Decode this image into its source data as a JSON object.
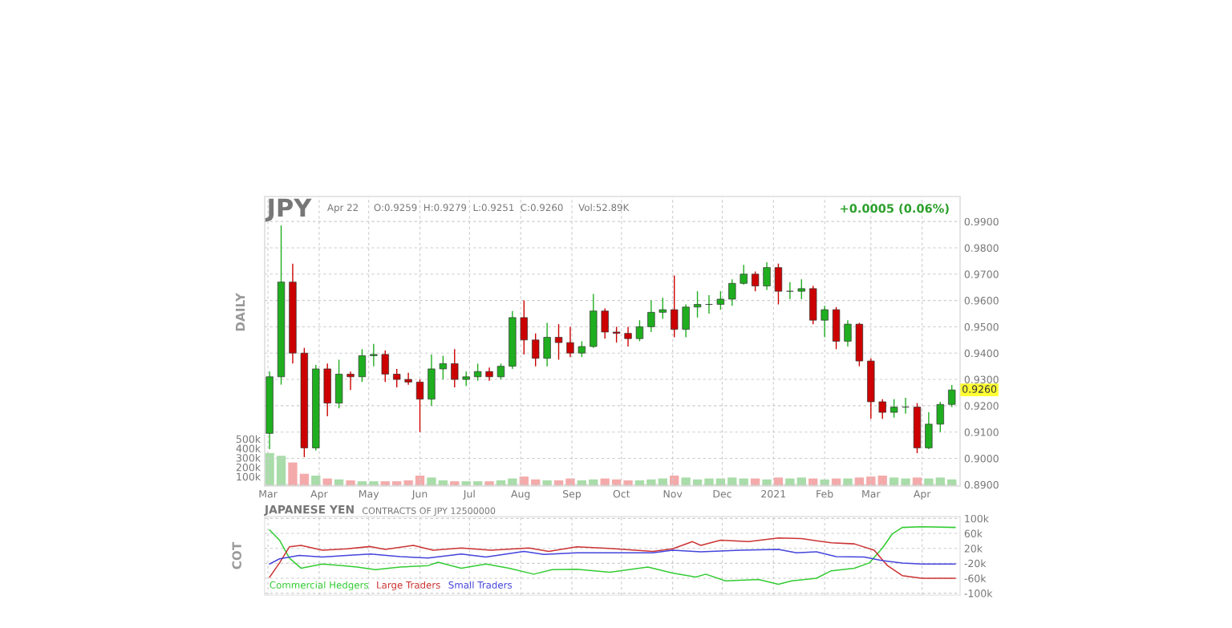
{
  "chart_data": [
    {
      "type": "candlestick",
      "title": "JPY",
      "subtitle": "Apr 22     O:0.9259  H:0.9279  L:0.9251  C:0.9260     Vol:52.89K",
      "y2label": "DAILY",
      "annotations": [
        "+0.0005 (0.06%)",
        {
          "text": "0.9260",
          "x": "2021-04-19",
          "y": 0.926
        }
      ],
      "x": [
        "2020-03-02",
        "2020-03-09",
        "2020-03-16",
        "2020-03-23",
        "2020-03-30",
        "2020-04-06",
        "2020-04-13",
        "2020-04-20",
        "2020-04-27",
        "2020-05-04",
        "2020-05-11",
        "2020-05-18",
        "2020-05-25",
        "2020-06-01",
        "2020-06-08",
        "2020-06-15",
        "2020-06-22",
        "2020-06-29",
        "2020-07-06",
        "2020-07-13",
        "2020-07-20",
        "2020-07-27",
        "2020-08-03",
        "2020-08-10",
        "2020-08-17",
        "2020-08-24",
        "2020-08-31",
        "2020-09-07",
        "2020-09-14",
        "2020-09-21",
        "2020-09-28",
        "2020-10-05",
        "2020-10-12",
        "2020-10-19",
        "2020-10-26",
        "2020-11-02",
        "2020-11-09",
        "2020-11-16",
        "2020-11-23",
        "2020-11-30",
        "2020-12-07",
        "2020-12-14",
        "2020-12-21",
        "2020-12-28",
        "2021-01-04",
        "2021-01-11",
        "2021-01-18",
        "2021-01-25",
        "2021-02-01",
        "2021-02-08",
        "2021-02-15",
        "2021-02-22",
        "2021-03-01",
        "2021-03-08",
        "2021-03-15",
        "2021-03-22",
        "2021-03-29",
        "2021-04-05",
        "2021-04-12",
        "2021-04-19"
      ],
      "ohlc": [
        [
          0.9095,
          0.933,
          0.9035,
          0.931
        ],
        [
          0.931,
          0.9885,
          0.928,
          0.967
        ],
        [
          0.967,
          0.974,
          0.936,
          0.94
        ],
        [
          0.94,
          0.942,
          0.9005,
          0.904
        ],
        [
          0.904,
          0.9355,
          0.903,
          0.934
        ],
        [
          0.934,
          0.936,
          0.916,
          0.921
        ],
        [
          0.921,
          0.9375,
          0.919,
          0.932
        ],
        [
          0.932,
          0.933,
          0.926,
          0.931
        ],
        [
          0.931,
          0.9415,
          0.929,
          0.939
        ],
        [
          0.939,
          0.9435,
          0.935,
          0.9395
        ],
        [
          0.9395,
          0.941,
          0.929,
          0.932
        ],
        [
          0.932,
          0.934,
          0.927,
          0.93
        ],
        [
          0.93,
          0.9325,
          0.928,
          0.929
        ],
        [
          0.929,
          0.93,
          0.91,
          0.9225
        ],
        [
          0.9225,
          0.9395,
          0.92,
          0.934
        ],
        [
          0.934,
          0.939,
          0.93,
          0.936
        ],
        [
          0.936,
          0.9415,
          0.927,
          0.93
        ],
        [
          0.93,
          0.933,
          0.9275,
          0.931
        ],
        [
          0.931,
          0.936,
          0.9295,
          0.933
        ],
        [
          0.933,
          0.9345,
          0.9295,
          0.931
        ],
        [
          0.931,
          0.936,
          0.93,
          0.935
        ],
        [
          0.935,
          0.956,
          0.934,
          0.9535
        ],
        [
          0.9535,
          0.96,
          0.9395,
          0.945
        ],
        [
          0.945,
          0.9475,
          0.935,
          0.938
        ],
        [
          0.938,
          0.9515,
          0.935,
          0.946
        ],
        [
          0.946,
          0.951,
          0.9375,
          0.944
        ],
        [
          0.944,
          0.95,
          0.9385,
          0.94
        ],
        [
          0.94,
          0.9445,
          0.9385,
          0.9425
        ],
        [
          0.9425,
          0.9625,
          0.942,
          0.956
        ],
        [
          0.956,
          0.957,
          0.9455,
          0.948
        ],
        [
          0.948,
          0.95,
          0.944,
          0.9475
        ],
        [
          0.9475,
          0.95,
          0.9425,
          0.9455
        ],
        [
          0.9455,
          0.9525,
          0.9445,
          0.95
        ],
        [
          0.95,
          0.96,
          0.948,
          0.9555
        ],
        [
          0.9555,
          0.961,
          0.953,
          0.9565
        ],
        [
          0.9565,
          0.9695,
          0.946,
          0.949
        ],
        [
          0.949,
          0.9585,
          0.946,
          0.9575
        ],
        [
          0.9575,
          0.9635,
          0.9535,
          0.9585
        ],
        [
          0.9585,
          0.962,
          0.955,
          0.9585
        ],
        [
          0.9585,
          0.9635,
          0.9565,
          0.9605
        ],
        [
          0.9605,
          0.968,
          0.958,
          0.9665
        ],
        [
          0.9665,
          0.9735,
          0.966,
          0.97
        ],
        [
          0.97,
          0.971,
          0.9635,
          0.9655
        ],
        [
          0.9655,
          0.9745,
          0.964,
          0.9725
        ],
        [
          0.9725,
          0.974,
          0.9585,
          0.9635
        ],
        [
          0.9635,
          0.967,
          0.9605,
          0.9635
        ],
        [
          0.9635,
          0.968,
          0.9605,
          0.9645
        ],
        [
          0.9645,
          0.9655,
          0.951,
          0.9525
        ],
        [
          0.9525,
          0.958,
          0.946,
          0.9565
        ],
        [
          0.9565,
          0.9575,
          0.9415,
          0.9445
        ],
        [
          0.9445,
          0.9525,
          0.9425,
          0.951
        ],
        [
          0.951,
          0.9515,
          0.935,
          0.937
        ],
        [
          0.937,
          0.938,
          0.915,
          0.9215
        ],
        [
          0.9215,
          0.9225,
          0.915,
          0.9175
        ],
        [
          0.9175,
          0.9225,
          0.9155,
          0.9195
        ],
        [
          0.9195,
          0.923,
          0.917,
          0.9195
        ],
        [
          0.9195,
          0.921,
          0.902,
          0.904
        ],
        [
          0.904,
          0.9175,
          0.9035,
          0.913
        ],
        [
          0.913,
          0.9215,
          0.91,
          0.9205
        ],
        [
          0.9205,
          0.9279,
          0.9195,
          0.926
        ]
      ],
      "series": [
        {
          "type": "bar",
          "axis": "y2",
          "colors": [
            "#a8dca8",
            "#a8dca8",
            "#f4aaaa",
            "#f4aaaa",
            "#a8dca8",
            "#f4aaaa",
            "#a8dca8",
            "#f4aaaa",
            "#a8dca8",
            "#a8dca8",
            "#f4aaaa",
            "#f4aaaa",
            "#f4aaaa",
            "#f4aaaa",
            "#a8dca8",
            "#a8dca8",
            "#f4aaaa",
            "#a8dca8",
            "#a8dca8",
            "#f4aaaa",
            "#a8dca8",
            "#a8dca8",
            "#f4aaaa",
            "#f4aaaa",
            "#a8dca8",
            "#f4aaaa",
            "#f4aaaa",
            "#a8dca8",
            "#a8dca8",
            "#f4aaaa",
            "#f4aaaa",
            "#f4aaaa",
            "#a8dca8",
            "#a8dca8",
            "#a8dca8",
            "#f4aaaa",
            "#a8dca8",
            "#a8dca8",
            "#a8dca8",
            "#a8dca8",
            "#a8dca8",
            "#a8dca8",
            "#f4aaaa",
            "#a8dca8",
            "#f4aaaa",
            "#a8dca8",
            "#a8dca8",
            "#f4aaaa",
            "#a8dca8",
            "#f4aaaa",
            "#a8dca8",
            "#f4aaaa",
            "#f4aaaa",
            "#f4aaaa",
            "#a8dca8",
            "#a8dca8",
            "#f4aaaa",
            "#a8dca8",
            "#a8dca8",
            "#a8dca8"
          ],
          "values": [
            350000,
            320000,
            250000,
            130000,
            110000,
            80000,
            70000,
            60000,
            50000,
            50000,
            50000,
            50000,
            60000,
            110000,
            90000,
            60000,
            50000,
            50000,
            50000,
            50000,
            60000,
            80000,
            100000,
            70000,
            60000,
            60000,
            80000,
            60000,
            70000,
            80000,
            70000,
            60000,
            60000,
            70000,
            80000,
            110000,
            90000,
            70000,
            80000,
            80000,
            90000,
            80000,
            80000,
            70000,
            90000,
            80000,
            90000,
            80000,
            70000,
            80000,
            80000,
            90000,
            100000,
            110000,
            90000,
            80000,
            90000,
            80000,
            90000,
            70000
          ]
        }
      ],
      "xlim": [
        "2020-02-28",
        "2021-04-24"
      ],
      "xticks": [
        {
          "value": "2020-03-01",
          "label": "Mar"
        },
        {
          "value": "2020-04-01",
          "label": "Apr"
        },
        {
          "value": "2020-05-01",
          "label": "May"
        },
        {
          "value": "2020-06-01",
          "label": "Jun"
        },
        {
          "value": "2020-07-01",
          "label": "Jul"
        },
        {
          "value": "2020-08-01",
          "label": "Aug"
        },
        {
          "value": "2020-09-01",
          "label": "Sep"
        },
        {
          "value": "2020-10-01",
          "label": "Oct"
        },
        {
          "value": "2020-11-01",
          "label": "Nov"
        },
        {
          "value": "2020-12-01",
          "label": "Dec"
        },
        {
          "value": "2021-01-01",
          "label": "2021"
        },
        {
          "value": "2021-02-01",
          "label": "Feb"
        },
        {
          "value": "2021-03-01",
          "label": "Mar"
        },
        {
          "value": "2021-04-01",
          "label": "Apr"
        }
      ],
      "ylim": [
        0.8895,
        0.9995
      ],
      "yticks": [
        {
          "value": 0.89,
          "label": "0.8900"
        },
        {
          "value": 0.9,
          "label": "0.9000"
        },
        {
          "value": 0.91,
          "label": "0.9100"
        },
        {
          "value": 0.92,
          "label": "0.9200"
        },
        {
          "value": 0.93,
          "label": "0.9300"
        },
        {
          "value": 0.94,
          "label": "0.9400"
        },
        {
          "value": 0.95,
          "label": "0.9500"
        },
        {
          "value": 0.96,
          "label": "0.9600"
        },
        {
          "value": 0.97,
          "label": "0.9700"
        },
        {
          "value": 0.98,
          "label": "0.9800"
        },
        {
          "value": 0.99,
          "label": "0.9900"
        }
      ],
      "y2lim": [
        0,
        3070000
      ],
      "y2ticks": [
        {
          "value": 100000,
          "label": "100k"
        },
        {
          "value": 200000,
          "label": "200k"
        },
        {
          "value": 300000,
          "label": "300k"
        },
        {
          "value": 400000,
          "label": "400k"
        },
        {
          "value": 500000,
          "label": "500k"
        }
      ],
      "grid": true
    },
    {
      "type": "line",
      "title": "JAPANESE YEN",
      "subtitle": "CONTRACTS OF JPY 12500000",
      "ylabel": "COT",
      "series": [
        {
          "name": "Commercial Hedgers",
          "color": "#33cc33",
          "x": [
            "2020-03-02",
            "2020-03-08",
            "2020-03-14",
            "2020-03-21",
            "2020-04-03",
            "2020-04-15",
            "2020-04-24",
            "2020-05-05",
            "2020-05-20",
            "2020-06-06",
            "2020-06-12",
            "2020-06-26",
            "2020-07-11",
            "2020-07-25",
            "2020-08-09",
            "2020-08-20",
            "2020-09-04",
            "2020-09-24",
            "2020-10-17",
            "2020-11-01",
            "2020-11-15",
            "2020-11-21",
            "2020-12-03",
            "2020-12-23",
            "2021-01-04",
            "2021-01-12",
            "2021-01-27",
            "2021-02-05",
            "2021-02-19",
            "2021-02-28",
            "2021-03-08",
            "2021-03-14",
            "2021-03-20",
            "2021-04-01",
            "2021-04-21"
          ],
          "values": [
            69000,
            42000,
            -6000,
            -33000,
            -22000,
            -26000,
            -30000,
            -37000,
            -30000,
            -26000,
            -17000,
            -33000,
            -22000,
            -33000,
            -49000,
            -37000,
            -36000,
            -44000,
            -30000,
            -46000,
            -57000,
            -49000,
            -67000,
            -63000,
            -76000,
            -67000,
            -60000,
            -40000,
            -33000,
            -19000,
            21000,
            59000,
            76000,
            78000,
            76000
          ]
        },
        {
          "name": "Large Traders",
          "color": "#cc3333",
          "x": [
            "2020-03-02",
            "2020-03-08",
            "2020-03-14",
            "2020-03-21",
            "2020-04-03",
            "2020-04-18",
            "2020-05-02",
            "2020-05-11",
            "2020-05-28",
            "2020-06-09",
            "2020-06-26",
            "2020-07-14",
            "2020-08-06",
            "2020-08-18",
            "2020-09-04",
            "2020-09-27",
            "2020-10-20",
            "2020-11-01",
            "2020-11-13",
            "2020-11-18",
            "2020-11-30",
            "2020-12-17",
            "2021-01-04",
            "2021-01-18",
            "2021-02-05",
            "2021-02-19",
            "2021-03-03",
            "2021-03-11",
            "2021-03-20",
            "2021-04-01",
            "2021-04-21"
          ],
          "values": [
            -57000,
            -19000,
            24000,
            28000,
            15000,
            19000,
            25000,
            17000,
            28000,
            15000,
            21000,
            15000,
            21000,
            12000,
            24000,
            19000,
            12000,
            19000,
            38000,
            28000,
            42000,
            38000,
            48000,
            46000,
            35000,
            32000,
            15000,
            -26000,
            -53000,
            -60000,
            -60000
          ]
        },
        {
          "name": "Small Traders",
          "color": "#4444dd",
          "x": [
            "2020-03-02",
            "2020-03-08",
            "2020-03-20",
            "2020-04-03",
            "2020-04-18",
            "2020-05-02",
            "2020-05-20",
            "2020-06-06",
            "2020-06-26",
            "2020-07-11",
            "2020-08-03",
            "2020-08-15",
            "2020-09-04",
            "2020-09-27",
            "2020-10-20",
            "2020-11-01",
            "2020-11-18",
            "2020-12-12",
            "2021-01-04",
            "2021-01-15",
            "2021-01-27",
            "2021-02-08",
            "2021-02-25",
            "2021-03-08",
            "2021-03-20",
            "2021-04-01",
            "2021-04-21"
          ],
          "values": [
            -22000,
            -8000,
            1000,
            -3000,
            1000,
            5000,
            -2000,
            -6000,
            5000,
            -3000,
            12000,
            4000,
            8000,
            8000,
            8000,
            15000,
            11000,
            15000,
            17000,
            8000,
            11000,
            -2000,
            -3000,
            -13000,
            -19000,
            -22000,
            -22000
          ]
        }
      ],
      "xlim": [
        "2020-02-28",
        "2021-04-24"
      ],
      "xticks": [
        {
          "value": "2020-03-01",
          "label": null
        },
        {
          "value": "2020-04-01",
          "label": null
        },
        {
          "value": "2020-05-01",
          "label": null
        },
        {
          "value": "2020-06-01",
          "label": null
        },
        {
          "value": "2020-07-01",
          "label": null
        },
        {
          "value": "2020-08-01",
          "label": null
        },
        {
          "value": "2020-09-01",
          "label": null
        },
        {
          "value": "2020-10-01",
          "label": null
        },
        {
          "value": "2020-11-01",
          "label": null
        },
        {
          "value": "2020-12-01",
          "label": null
        },
        {
          "value": "2021-01-01",
          "label": null
        },
        {
          "value": "2021-02-01",
          "label": null
        },
        {
          "value": "2021-03-01",
          "label": null
        },
        {
          "value": "2021-04-01",
          "label": null
        }
      ],
      "ylim": [
        -105000,
        105000
      ],
      "yticks": [
        {
          "value": -100000,
          "label": "-100k"
        },
        {
          "value": -60000,
          "label": "-60k"
        },
        {
          "value": -20000,
          "label": "-20k"
        },
        {
          "value": 20000,
          "label": "20k"
        },
        {
          "value": 60000,
          "label": "60k"
        },
        {
          "value": 100000,
          "label": "100k"
        }
      ],
      "grid": true,
      "legend": "bottom left",
      "tick_labels": "y"
    }
  ]
}
